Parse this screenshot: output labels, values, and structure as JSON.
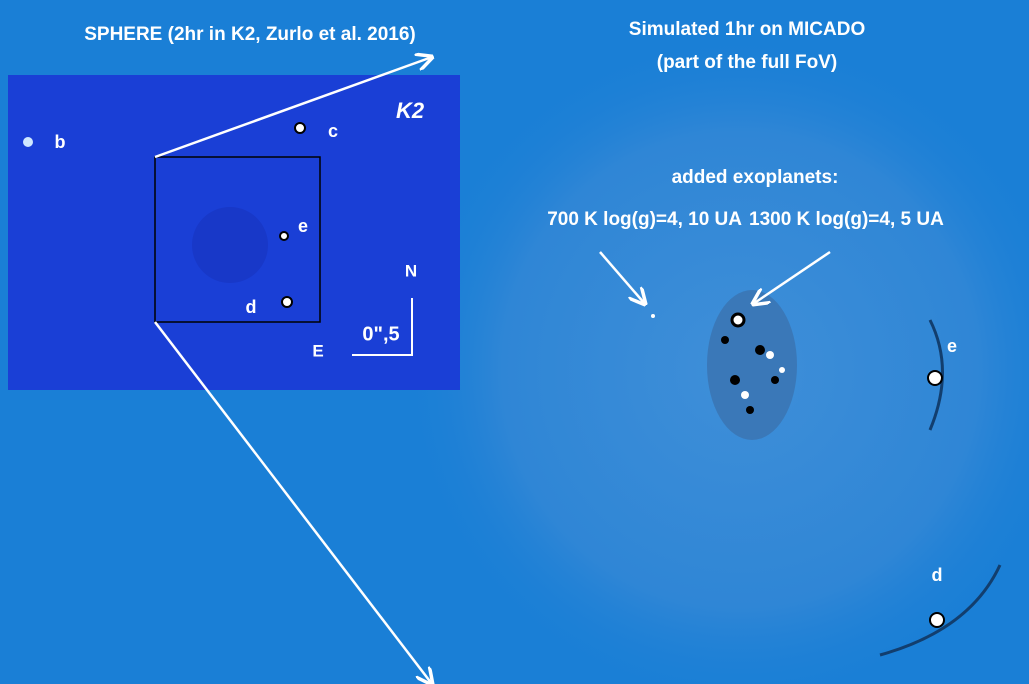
{
  "left_panel": {
    "title": "SPHERE (2hr in K2, Zurlo et al. 2016)",
    "band": "K2",
    "planets": [
      "b",
      "c",
      "e",
      "d"
    ],
    "north": "N",
    "east": "E",
    "scale": "0\",5"
  },
  "right_panel": {
    "title_lines": [
      "Simulated 1hr on MICADO",
      "(part of the full FoV)"
    ],
    "annotation": "added  exoplanets:",
    "planet_labels": [
      "700 K log(g)=4, 10 UA",
      "1300 K log(g)=4, 5 UA"
    ],
    "planets": [
      "e",
      "d"
    ]
  }
}
